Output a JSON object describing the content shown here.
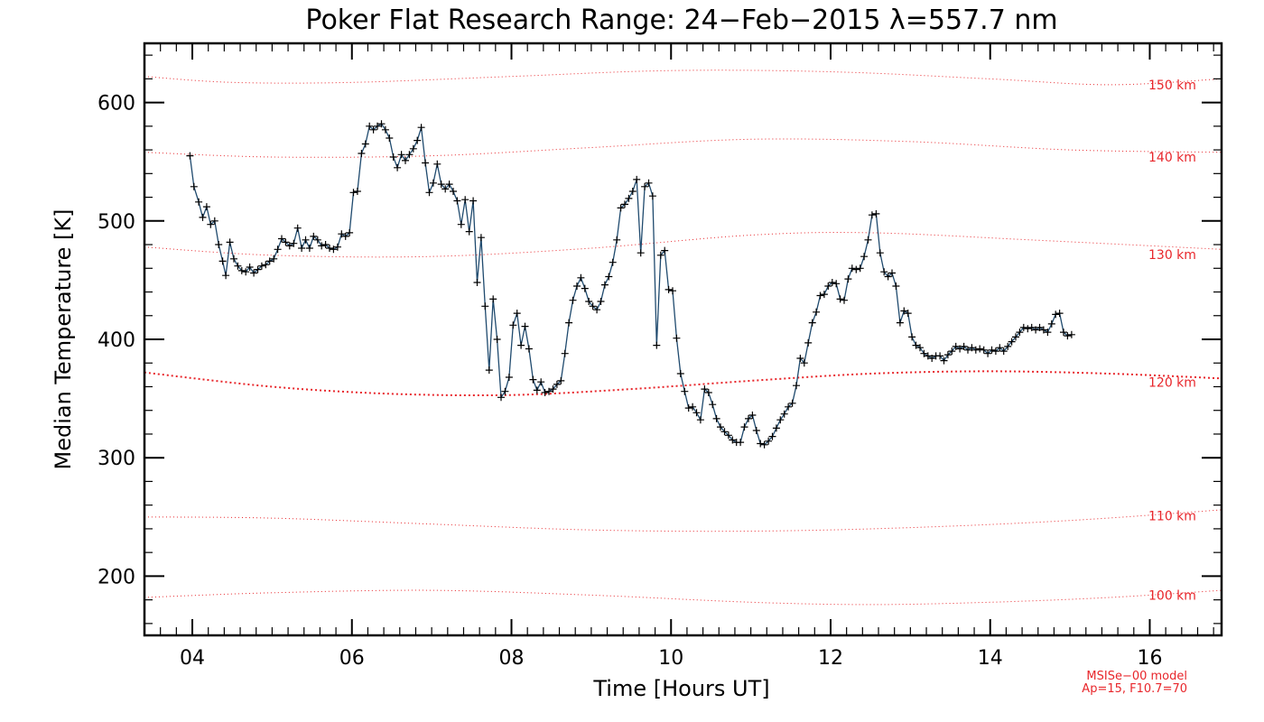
{
  "chart_data": {
    "type": "line",
    "title": "Poker Flat Research Range: 24−Feb−2015 λ=557.7 nm",
    "xlabel": "Time [Hours UT]",
    "ylabel": "Median Temperature [K]",
    "xlim": [
      3.4,
      16.9
    ],
    "ylim": [
      150,
      650
    ],
    "x_ticks": [
      4,
      6,
      8,
      10,
      12,
      14,
      16
    ],
    "x_tick_labels": [
      "04",
      "06",
      "08",
      "10",
      "12",
      "14",
      "16"
    ],
    "y_ticks": [
      200,
      300,
      400,
      500,
      600
    ],
    "y_tick_labels": [
      "200",
      "300",
      "400",
      "500",
      "600"
    ],
    "grid": false,
    "colors": {
      "series": "#1f4a6e",
      "marker": "#000000",
      "model": "#e8262b"
    },
    "series": [
      {
        "name": "",
        "marker": "plus",
        "points": [
          [
            3.97,
            555
          ],
          [
            4.02,
            529
          ],
          [
            4.08,
            516
          ],
          [
            4.13,
            503
          ],
          [
            4.18,
            512
          ],
          [
            4.23,
            497
          ],
          [
            4.28,
            500
          ],
          [
            4.33,
            480
          ],
          [
            4.38,
            466
          ],
          [
            4.42,
            454
          ],
          [
            4.47,
            482
          ],
          [
            4.52,
            468
          ],
          [
            4.57,
            462
          ],
          [
            4.62,
            458
          ],
          [
            4.67,
            457
          ],
          [
            4.72,
            461
          ],
          [
            4.77,
            456
          ],
          [
            4.82,
            459
          ],
          [
            4.87,
            462
          ],
          [
            4.92,
            463
          ],
          [
            4.97,
            466
          ],
          [
            5.02,
            468
          ],
          [
            5.07,
            476
          ],
          [
            5.12,
            485
          ],
          [
            5.17,
            482
          ],
          [
            5.22,
            479
          ],
          [
            5.27,
            481
          ],
          [
            5.32,
            494
          ],
          [
            5.37,
            477
          ],
          [
            5.42,
            484
          ],
          [
            5.47,
            477
          ],
          [
            5.52,
            487
          ],
          [
            5.57,
            484
          ],
          [
            5.62,
            479
          ],
          [
            5.67,
            480
          ],
          [
            5.72,
            477
          ],
          [
            5.77,
            476
          ],
          [
            5.82,
            478
          ],
          [
            5.87,
            489
          ],
          [
            5.92,
            487
          ],
          [
            5.97,
            490
          ],
          [
            6.02,
            524
          ],
          [
            6.07,
            525
          ],
          [
            6.12,
            557
          ],
          [
            6.17,
            565
          ],
          [
            6.22,
            580
          ],
          [
            6.27,
            577
          ],
          [
            6.32,
            580
          ],
          [
            6.37,
            582
          ],
          [
            6.42,
            577
          ],
          [
            6.47,
            570
          ],
          [
            6.52,
            554
          ],
          [
            6.57,
            545
          ],
          [
            6.62,
            556
          ],
          [
            6.67,
            551
          ],
          [
            6.72,
            556
          ],
          [
            6.77,
            561
          ],
          [
            6.82,
            568
          ],
          [
            6.87,
            579
          ],
          [
            6.92,
            549
          ],
          [
            6.97,
            524
          ],
          [
            7.02,
            532
          ],
          [
            7.07,
            548
          ],
          [
            7.12,
            531
          ],
          [
            7.17,
            527
          ],
          [
            7.22,
            531
          ],
          [
            7.27,
            525
          ],
          [
            7.32,
            517
          ],
          [
            7.37,
            497
          ],
          [
            7.42,
            518
          ],
          [
            7.47,
            491
          ],
          [
            7.52,
            517
          ],
          [
            7.57,
            448
          ],
          [
            7.62,
            486
          ],
          [
            7.67,
            428
          ],
          [
            7.72,
            374
          ],
          [
            7.77,
            434
          ],
          [
            7.82,
            400
          ],
          [
            7.87,
            351
          ],
          [
            7.92,
            356
          ],
          [
            7.97,
            368
          ],
          [
            8.02,
            412
          ],
          [
            8.07,
            422
          ],
          [
            8.12,
            395
          ],
          [
            8.17,
            411
          ],
          [
            8.22,
            392
          ],
          [
            8.27,
            366
          ],
          [
            8.32,
            357
          ],
          [
            8.37,
            364
          ],
          [
            8.42,
            355
          ],
          [
            8.47,
            356
          ],
          [
            8.52,
            358
          ],
          [
            8.57,
            362
          ],
          [
            8.62,
            365
          ],
          [
            8.67,
            388
          ],
          [
            8.72,
            414
          ],
          [
            8.77,
            433
          ],
          [
            8.82,
            445
          ],
          [
            8.87,
            452
          ],
          [
            8.92,
            443
          ],
          [
            8.97,
            432
          ],
          [
            9.02,
            428
          ],
          [
            9.07,
            425
          ],
          [
            9.12,
            432
          ],
          [
            9.17,
            446
          ],
          [
            9.22,
            453
          ],
          [
            9.27,
            465
          ],
          [
            9.32,
            484
          ],
          [
            9.37,
            511
          ],
          [
            9.42,
            514
          ],
          [
            9.47,
            519
          ],
          [
            9.52,
            525
          ],
          [
            9.57,
            535
          ],
          [
            9.62,
            473
          ],
          [
            9.67,
            529
          ],
          [
            9.72,
            532
          ],
          [
            9.77,
            521
          ],
          [
            9.82,
            395
          ],
          [
            9.87,
            471
          ],
          [
            9.92,
            475
          ],
          [
            9.97,
            442
          ],
          [
            10.02,
            441
          ],
          [
            10.07,
            401
          ],
          [
            10.12,
            371
          ],
          [
            10.17,
            356
          ],
          [
            10.22,
            342
          ],
          [
            10.27,
            343
          ],
          [
            10.32,
            338
          ],
          [
            10.37,
            332
          ],
          [
            10.42,
            358
          ],
          [
            10.47,
            355
          ],
          [
            10.52,
            345
          ],
          [
            10.57,
            333
          ],
          [
            10.62,
            326
          ],
          [
            10.67,
            322
          ],
          [
            10.72,
            319
          ],
          [
            10.77,
            315
          ],
          [
            10.82,
            313
          ],
          [
            10.87,
            313
          ],
          [
            10.92,
            326
          ],
          [
            10.97,
            333
          ],
          [
            11.02,
            336
          ],
          [
            11.07,
            323
          ],
          [
            11.12,
            312
          ],
          [
            11.17,
            311
          ],
          [
            11.22,
            314
          ],
          [
            11.27,
            318
          ],
          [
            11.32,
            325
          ],
          [
            11.37,
            332
          ],
          [
            11.42,
            337
          ],
          [
            11.47,
            343
          ],
          [
            11.52,
            346
          ],
          [
            11.57,
            361
          ],
          [
            11.62,
            384
          ],
          [
            11.67,
            380
          ],
          [
            11.72,
            397
          ],
          [
            11.77,
            414
          ],
          [
            11.82,
            423
          ],
          [
            11.87,
            437
          ],
          [
            11.92,
            438
          ],
          [
            11.97,
            445
          ],
          [
            12.02,
            448
          ],
          [
            12.07,
            447
          ],
          [
            12.12,
            434
          ],
          [
            12.17,
            433
          ],
          [
            12.22,
            451
          ],
          [
            12.27,
            460
          ],
          [
            12.32,
            459
          ],
          [
            12.37,
            460
          ],
          [
            12.42,
            470
          ],
          [
            12.47,
            484
          ],
          [
            12.52,
            505
          ],
          [
            12.57,
            506
          ],
          [
            12.62,
            473
          ],
          [
            12.67,
            457
          ],
          [
            12.72,
            453
          ],
          [
            12.77,
            456
          ],
          [
            12.82,
            445
          ],
          [
            12.87,
            414
          ],
          [
            12.92,
            424
          ],
          [
            12.97,
            422
          ],
          [
            13.02,
            402
          ],
          [
            13.07,
            395
          ],
          [
            13.12,
            393
          ],
          [
            13.17,
            388
          ],
          [
            13.22,
            386
          ],
          [
            13.27,
            384
          ],
          [
            13.32,
            386
          ],
          [
            13.37,
            386
          ],
          [
            13.42,
            382
          ],
          [
            13.47,
            387
          ],
          [
            13.52,
            390
          ],
          [
            13.57,
            394
          ],
          [
            13.62,
            392
          ],
          [
            13.67,
            394
          ],
          [
            13.72,
            391
          ],
          [
            13.77,
            393
          ],
          [
            13.82,
            391
          ],
          [
            13.87,
            392
          ],
          [
            13.92,
            391
          ],
          [
            13.97,
            388
          ],
          [
            14.02,
            391
          ],
          [
            14.07,
            390
          ],
          [
            14.12,
            393
          ],
          [
            14.17,
            390
          ],
          [
            14.22,
            394
          ],
          [
            14.27,
            398
          ],
          [
            14.32,
            402
          ],
          [
            14.37,
            406
          ],
          [
            14.42,
            410
          ],
          [
            14.47,
            409
          ],
          [
            14.52,
            410
          ],
          [
            14.57,
            408
          ],
          [
            14.62,
            410
          ],
          [
            14.67,
            408
          ],
          [
            14.72,
            406
          ],
          [
            14.77,
            413
          ],
          [
            14.82,
            421
          ],
          [
            14.87,
            422
          ],
          [
            14.92,
            406
          ],
          [
            14.97,
            403
          ],
          [
            15.02,
            404
          ]
        ]
      }
    ],
    "model_curves": [
      {
        "label": "150 km",
        "style": "dotted",
        "points": [
          [
            3.4,
            622
          ],
          [
            4.5,
            617
          ],
          [
            6.0,
            617
          ],
          [
            8.0,
            622
          ],
          [
            10.0,
            627
          ],
          [
            12.0,
            626
          ],
          [
            14.0,
            620
          ],
          [
            15.5,
            615
          ],
          [
            16.9,
            620
          ]
        ]
      },
      {
        "label": "140 km",
        "style": "dotted",
        "points": [
          [
            3.4,
            558
          ],
          [
            5.0,
            554
          ],
          [
            7.0,
            555
          ],
          [
            9.0,
            562
          ],
          [
            11.0,
            569
          ],
          [
            13.0,
            567
          ],
          [
            15.0,
            560
          ],
          [
            16.9,
            558
          ]
        ]
      },
      {
        "label": "130 km",
        "style": "dotted",
        "points": [
          [
            3.4,
            478
          ],
          [
            5.0,
            471
          ],
          [
            7.0,
            470
          ],
          [
            9.0,
            477
          ],
          [
            11.0,
            488
          ],
          [
            12.5,
            490
          ],
          [
            14.5,
            484
          ],
          [
            16.9,
            476
          ]
        ]
      },
      {
        "label": "120 km",
        "style": "dotted-bold",
        "points": [
          [
            3.4,
            372
          ],
          [
            5.0,
            360
          ],
          [
            6.5,
            354
          ],
          [
            8.0,
            353
          ],
          [
            9.5,
            358
          ],
          [
            11.0,
            365
          ],
          [
            12.5,
            371
          ],
          [
            14.0,
            373
          ],
          [
            15.5,
            371
          ],
          [
            16.9,
            367
          ]
        ]
      },
      {
        "label": "110 km",
        "style": "dotted",
        "points": [
          [
            3.4,
            250
          ],
          [
            5.0,
            249
          ],
          [
            7.0,
            244
          ],
          [
            9.0,
            239
          ],
          [
            11.0,
            238
          ],
          [
            13.0,
            241
          ],
          [
            15.0,
            247
          ],
          [
            16.9,
            256
          ]
        ]
      },
      {
        "label": "100 km",
        "style": "dotted",
        "points": [
          [
            3.4,
            182
          ],
          [
            5.0,
            186
          ],
          [
            7.0,
            188
          ],
          [
            9.0,
            184
          ],
          [
            11.0,
            178
          ],
          [
            12.5,
            176
          ],
          [
            14.0,
            178
          ],
          [
            15.5,
            182
          ],
          [
            16.9,
            188
          ]
        ]
      }
    ],
    "model_labels": [
      {
        "text": "150 km",
        "x": 16.0,
        "y": 611
      },
      {
        "text": "140 km",
        "x": 16.0,
        "y": 550
      },
      {
        "text": "130 km",
        "x": 16.0,
        "y": 468
      },
      {
        "text": "120 km",
        "x": 16.0,
        "y": 360
      },
      {
        "text": "110 km",
        "x": 16.0,
        "y": 247
      },
      {
        "text": "100 km",
        "x": 16.0,
        "y": 180
      }
    ],
    "annotations": [
      "MSISe−00 model",
      "Ap=15, F10.7=70"
    ]
  }
}
